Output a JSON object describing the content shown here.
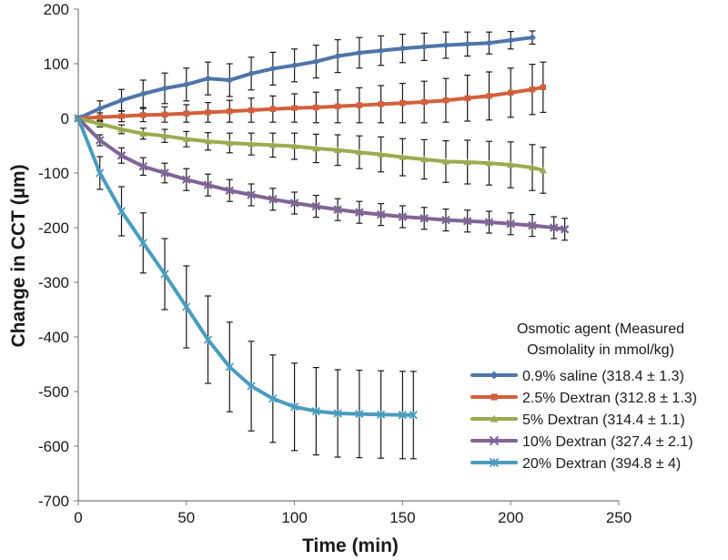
{
  "chart_data": {
    "type": "line",
    "title": "",
    "xlabel": "Time (min)",
    "ylabel": "Change in CCT (µm)",
    "xlim": [
      0,
      250
    ],
    "ylim": [
      -700,
      200
    ],
    "xticks": [
      0,
      50,
      100,
      150,
      200,
      250
    ],
    "yticks": [
      200,
      100,
      0,
      -100,
      -200,
      -300,
      -400,
      -500,
      -600,
      -700
    ],
    "grid": false,
    "legend": {
      "position": "bottom-right",
      "title_line1": "Osmotic agent (Measured",
      "title_line2": "Osmolality in mmol/kg)"
    },
    "series": [
      {
        "name": "0.9% saline (318.4 ± 1.3)",
        "color": "#4f74a8",
        "marker": "diamond",
        "x": [
          0,
          10,
          20,
          30,
          40,
          50,
          60,
          70,
          80,
          90,
          100,
          110,
          120,
          130,
          140,
          150,
          160,
          170,
          180,
          190,
          200,
          210
        ],
        "values": [
          0,
          18,
          33,
          45,
          55,
          62,
          73,
          70,
          82,
          91,
          97,
          104,
          114,
          120,
          124,
          128,
          131,
          134,
          136,
          138,
          143,
          148
        ],
        "error": [
          4,
          14,
          20,
          25,
          28,
          30,
          30,
          30,
          30,
          30,
          30,
          30,
          30,
          28,
          27,
          26,
          25,
          24,
          22,
          20,
          16,
          12
        ]
      },
      {
        "name": "2.5% Dextran (312.8 ± 1.3)",
        "color": "#d35f3c",
        "marker": "square",
        "x": [
          0,
          10,
          20,
          30,
          40,
          50,
          60,
          70,
          80,
          90,
          100,
          110,
          120,
          130,
          140,
          150,
          160,
          170,
          180,
          190,
          200,
          210,
          215
        ],
        "values": [
          0,
          2,
          4,
          6,
          7,
          9,
          11,
          13,
          15,
          17,
          19,
          20,
          22,
          24,
          26,
          28,
          30,
          33,
          37,
          41,
          47,
          53,
          57
        ],
        "error": [
          4,
          8,
          10,
          12,
          14,
          16,
          18,
          20,
          22,
          24,
          26,
          28,
          30,
          32,
          34,
          36,
          38,
          40,
          42,
          44,
          45,
          46,
          46
        ]
      },
      {
        "name": "5% Dextran (314.4 ± 1.1)",
        "color": "#9aac51",
        "marker": "triangle",
        "x": [
          0,
          10,
          20,
          30,
          40,
          50,
          60,
          70,
          80,
          90,
          100,
          110,
          120,
          130,
          140,
          150,
          160,
          170,
          180,
          190,
          200,
          210,
          215
        ],
        "values": [
          0,
          -10,
          -20,
          -28,
          -32,
          -38,
          -42,
          -45,
          -47,
          -49,
          -51,
          -55,
          -58,
          -62,
          -66,
          -71,
          -75,
          -79,
          -80,
          -82,
          -85,
          -90,
          -95
        ],
        "error": [
          4,
          6,
          8,
          10,
          12,
          14,
          16,
          18,
          20,
          22,
          24,
          26,
          28,
          30,
          32,
          34,
          36,
          38,
          40,
          40,
          42,
          42,
          42
        ]
      },
      {
        "name": "10% Dextran (327.4 ± 2.1)",
        "color": "#806596",
        "marker": "x",
        "x": [
          0,
          10,
          20,
          30,
          40,
          50,
          60,
          70,
          80,
          90,
          100,
          110,
          120,
          130,
          140,
          150,
          160,
          170,
          180,
          190,
          200,
          210,
          220,
          225
        ],
        "values": [
          0,
          -40,
          -68,
          -88,
          -100,
          -112,
          -122,
          -132,
          -140,
          -148,
          -155,
          -161,
          -167,
          -172,
          -176,
          -180,
          -183,
          -186,
          -188,
          -190,
          -193,
          -196,
          -200,
          -203
        ],
        "error": [
          4,
          10,
          14,
          16,
          18,
          20,
          20,
          20,
          20,
          20,
          20,
          20,
          20,
          20,
          20,
          20,
          20,
          20,
          20,
          20,
          20,
          20,
          20,
          20
        ]
      },
      {
        "name": "20% Dextran (394.8 ± 4)",
        "color": "#4b9cbe",
        "marker": "star",
        "x": [
          0,
          10,
          20,
          30,
          40,
          50,
          60,
          70,
          80,
          90,
          100,
          110,
          120,
          130,
          140,
          150,
          155
        ],
        "values": [
          0,
          -100,
          -170,
          -228,
          -285,
          -345,
          -405,
          -455,
          -490,
          -513,
          -528,
          -536,
          -540,
          -541,
          -542,
          -543,
          -543
        ],
        "error": [
          4,
          30,
          45,
          55,
          65,
          75,
          80,
          82,
          82,
          80,
          80,
          80,
          80,
          80,
          80,
          80,
          80
        ]
      }
    ]
  }
}
